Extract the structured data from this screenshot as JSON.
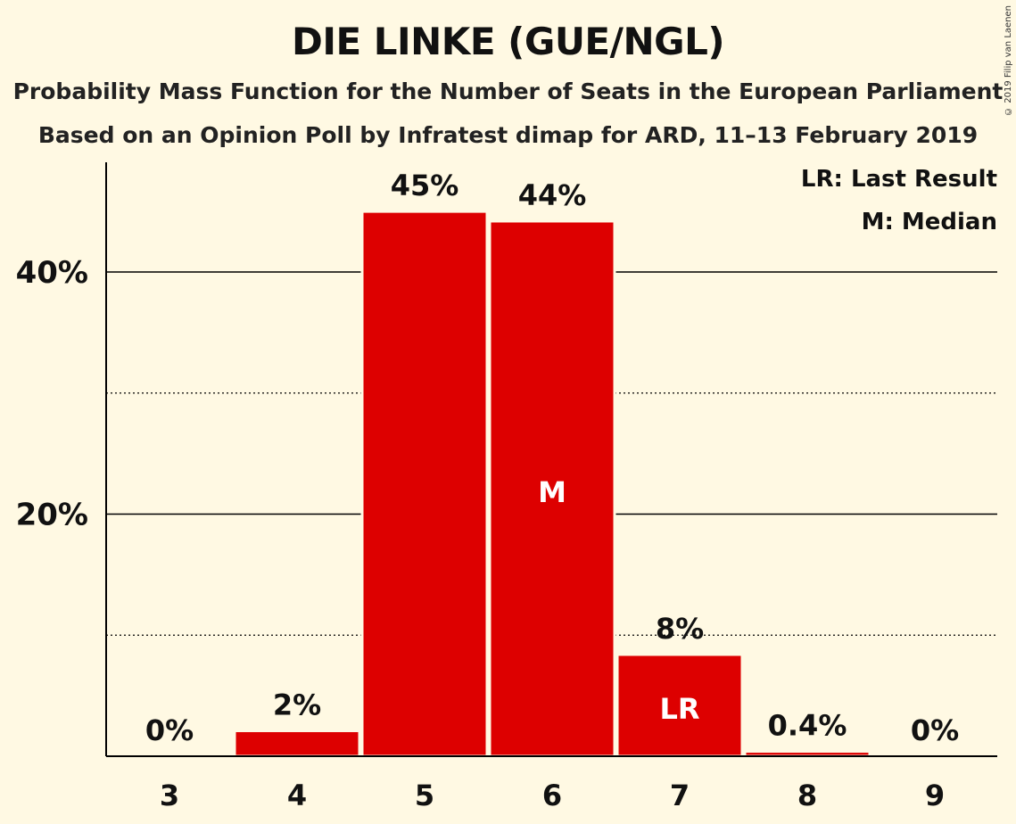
{
  "header": {
    "title": "DIE LINKE (GUE/NGL)",
    "subtitle1": "Probability Mass Function for the Number of Seats in the European Parliament",
    "subtitle2": "Based on an Opinion Poll by Infratest dimap for ARD, 11–13 February 2019",
    "copyright": "© 2019 Filip van Laenen"
  },
  "legend": {
    "lr": "LR: Last Result",
    "m": "M: Median"
  },
  "colors": {
    "background": "#FFF9E3",
    "bar": "#DD0000",
    "axis": "#000000"
  },
  "chart_data": {
    "type": "bar",
    "title": "DIE LINKE (GUE/NGL)",
    "categories": [
      "3",
      "4",
      "5",
      "6",
      "7",
      "8",
      "9"
    ],
    "values": [
      0,
      2.1,
      45,
      44.2,
      8.4,
      0.4,
      0
    ],
    "data_labels": [
      "0%",
      "2%",
      "45%",
      "44%",
      "8%",
      "0.4%",
      "0%"
    ],
    "bar_markers": [
      "",
      "",
      "",
      "M",
      "LR",
      "",
      ""
    ],
    "y_ticks": [
      {
        "value": 20,
        "label": "20%"
      },
      {
        "value": 40,
        "label": "40%"
      }
    ],
    "y_minor_gridlines": [
      10,
      30
    ],
    "ylim": [
      0,
      49
    ],
    "xlabel": "",
    "ylabel": "",
    "legend_position": "top-right"
  }
}
